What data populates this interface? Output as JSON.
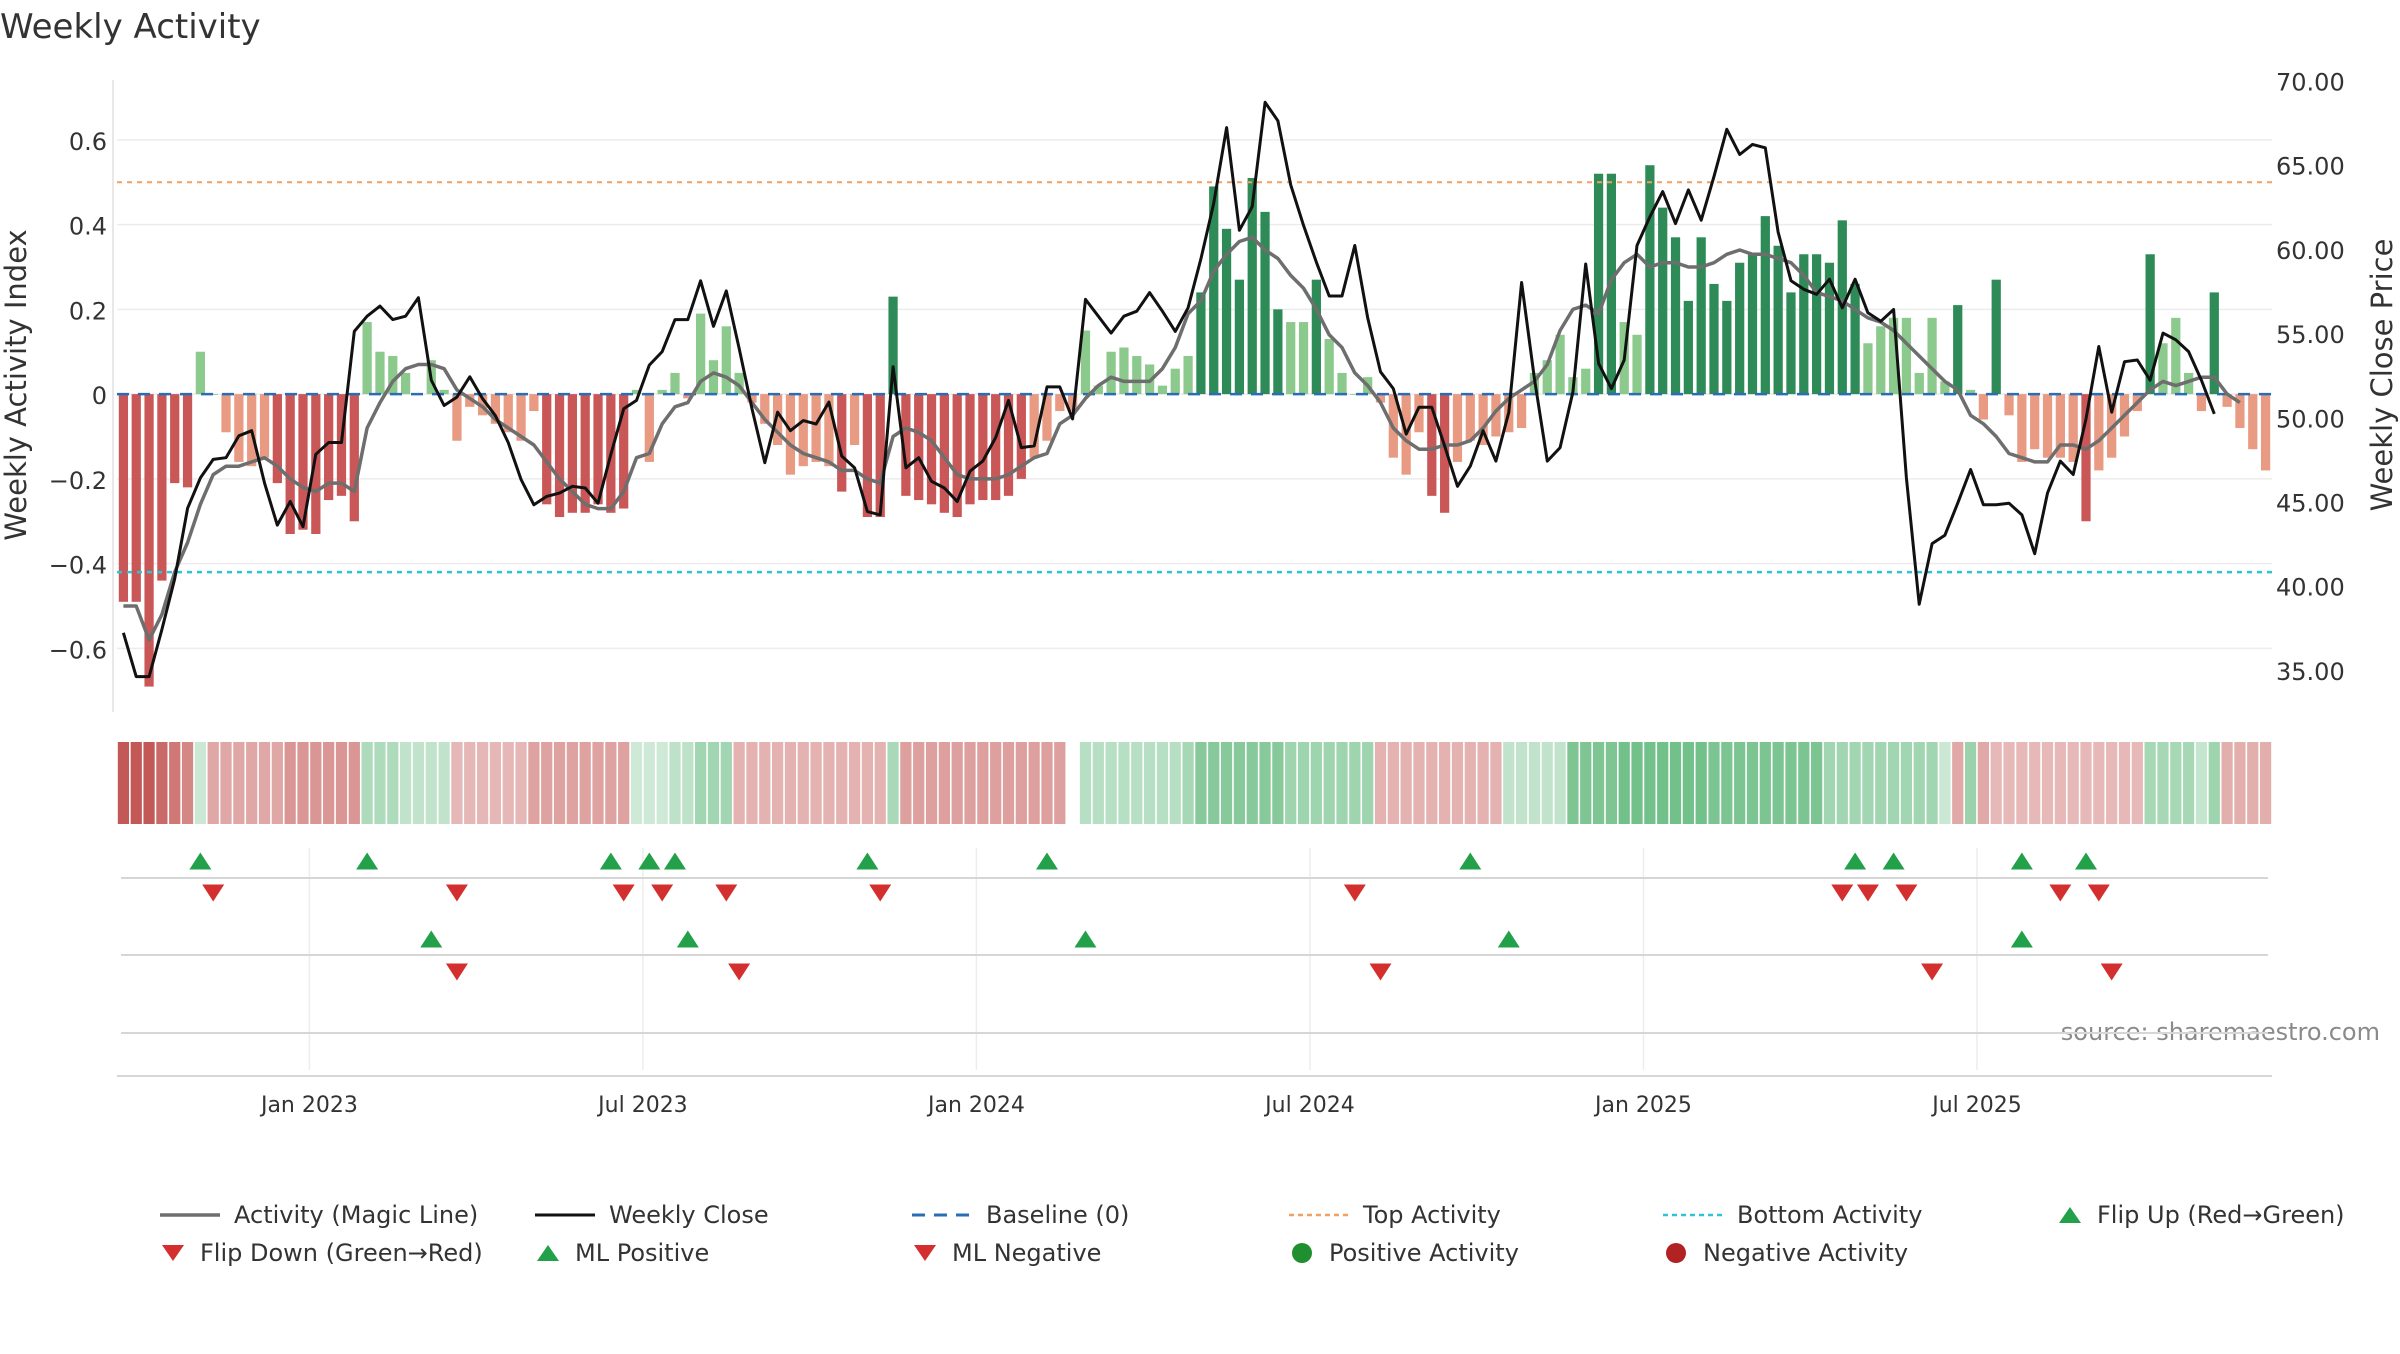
{
  "title": "Weekly Activity",
  "source_text": "source: sharemaestro.com",
  "colors": {
    "magic_line": "#6e6e6e",
    "close_line": "#111111",
    "baseline": "#2a6db5",
    "top_line": "#f0a060",
    "bottom_line": "#2ec4d6",
    "pos_strong": "#2e8b57",
    "pos_light": "#8cc98c",
    "neg_strong": "#c95757",
    "neg_light": "#e89a82",
    "marker_up": "#22a04a",
    "marker_down": "#d32f2f",
    "positive_dot": "#1f8f2f",
    "negative_dot": "#b22222"
  },
  "chart_data": {
    "type": "bar",
    "title": "Weekly Activity",
    "ylabel_left": "Weekly Activity Index",
    "ylabel_right": "Weekly Close Price",
    "ylim_left": [
      -0.75,
      0.76
    ],
    "ylim_right": [
      32.5,
      70.5
    ],
    "left_ticks": [
      "0.6",
      "0.4",
      "0.2",
      "0",
      "−0.2",
      "−0.4",
      "−0.6"
    ],
    "left_tick_values": [
      0.6,
      0.4,
      0.2,
      0,
      -0.2,
      -0.4,
      -0.6
    ],
    "right_ticks": [
      "70.00",
      "65.00",
      "60.00",
      "55.00",
      "50.00",
      "45.00",
      "40.00",
      "35.00"
    ],
    "right_tick_values": [
      70,
      65,
      60,
      55,
      50,
      45,
      40,
      35
    ],
    "x_tick_labels": [
      "Jan 2023",
      "Jul 2023",
      "Jan 2024",
      "Jul 2024",
      "Jan 2025",
      "Jul 2025"
    ],
    "x_tick_weeks": [
      15,
      41,
      67,
      93,
      119,
      145
    ],
    "top_activity": 0.5,
    "bottom_activity": -0.42,
    "start": "2022-09-26",
    "frequency": "weekly",
    "activity": [
      -0.49,
      -0.49,
      -0.69,
      -0.44,
      -0.21,
      -0.22,
      0.1,
      0,
      -0.09,
      -0.16,
      -0.17,
      -0.15,
      -0.21,
      -0.33,
      -0.32,
      -0.33,
      -0.25,
      -0.24,
      -0.3,
      0.17,
      0.1,
      0.09,
      0.05,
      0,
      0.08,
      0.01,
      -0.11,
      -0.03,
      -0.05,
      -0.07,
      -0.09,
      -0.11,
      -0.04,
      -0.26,
      -0.29,
      -0.28,
      -0.28,
      -0.26,
      -0.28,
      -0.27,
      0.01,
      -0.16,
      0.01,
      0.05,
      -0.01,
      0.19,
      0.08,
      0.16,
      0.05,
      -0.02,
      -0.07,
      -0.12,
      -0.19,
      -0.17,
      -0.16,
      -0.17,
      -0.23,
      -0.12,
      -0.29,
      -0.29,
      0.23,
      -0.24,
      -0.25,
      -0.26,
      -0.28,
      -0.29,
      -0.26,
      -0.25,
      -0.25,
      -0.24,
      -0.2,
      -0.15,
      -0.11,
      -0.04,
      -0.04,
      0.15,
      0.02,
      0.1,
      0.11,
      0.09,
      0.07,
      0.02,
      0.06,
      0.09,
      0.24,
      0.49,
      0.39,
      0.27,
      0.51,
      0.43,
      0.2,
      0.17,
      0.17,
      0.27,
      0.13,
      0.05,
      0,
      0.04,
      -0.02,
      -0.15,
      -0.19,
      -0.09,
      -0.24,
      -0.28,
      -0.16,
      -0.11,
      -0.12,
      -0.1,
      -0.09,
      -0.08,
      0.05,
      0.08,
      0.14,
      0.04,
      0.06,
      0.52,
      0.52,
      0.17,
      0.14,
      0.54,
      0.44,
      0.37,
      0.22,
      0.37,
      0.26,
      0.22,
      0.31,
      0.33,
      0.42,
      0.35,
      0.24,
      0.33,
      0.33,
      0.31,
      0.41,
      0.26,
      0.12,
      0.16,
      0.18,
      0.18,
      0.05,
      0.18,
      0.03,
      0.21,
      0.01,
      -0.06,
      0.27,
      -0.05,
      -0.16,
      -0.13,
      -0.15,
      -0.15,
      -0.16,
      -0.3,
      -0.18,
      -0.15,
      -0.1,
      -0.04,
      0.33,
      0.12,
      0.18,
      0.05,
      -0.04,
      0.24,
      -0.03,
      -0.08,
      -0.13,
      -0.18
    ],
    "magic_line": [
      -0.5,
      -0.5,
      -0.58,
      -0.52,
      -0.42,
      -0.35,
      -0.26,
      -0.19,
      -0.17,
      -0.17,
      -0.16,
      -0.15,
      -0.17,
      -0.2,
      -0.22,
      -0.23,
      -0.21,
      -0.21,
      -0.23,
      -0.08,
      -0.02,
      0.03,
      0.06,
      0.07,
      0.07,
      0.06,
      0.01,
      -0.01,
      -0.03,
      -0.06,
      -0.08,
      -0.1,
      -0.12,
      -0.16,
      -0.2,
      -0.23,
      -0.26,
      -0.27,
      -0.27,
      -0.23,
      -0.15,
      -0.14,
      -0.07,
      -0.03,
      -0.02,
      0.03,
      0.05,
      0.04,
      0.02,
      -0.02,
      -0.06,
      -0.09,
      -0.12,
      -0.14,
      -0.15,
      -0.16,
      -0.18,
      -0.18,
      -0.2,
      -0.21,
      -0.1,
      -0.08,
      -0.09,
      -0.11,
      -0.15,
      -0.19,
      -0.2,
      -0.2,
      -0.2,
      -0.19,
      -0.17,
      -0.15,
      -0.14,
      -0.07,
      -0.05,
      -0.01,
      0.02,
      0.04,
      0.03,
      0.03,
      0.03,
      0.06,
      0.11,
      0.19,
      0.22,
      0.29,
      0.33,
      0.36,
      0.37,
      0.34,
      0.32,
      0.28,
      0.25,
      0.2,
      0.14,
      0.11,
      0.05,
      0.02,
      -0.02,
      -0.08,
      -0.11,
      -0.13,
      -0.13,
      -0.12,
      -0.12,
      -0.11,
      -0.08,
      -0.04,
      -0.01,
      0.01,
      0.03,
      0.07,
      0.15,
      0.2,
      0.21,
      0.19,
      0.27,
      0.31,
      0.33,
      0.3,
      0.31,
      0.31,
      0.3,
      0.3,
      0.31,
      0.33,
      0.34,
      0.33,
      0.33,
      0.32,
      0.31,
      0.28,
      0.24,
      0.23,
      0.22,
      0.2,
      0.18,
      0.17,
      0.15,
      0.12,
      0.09,
      0.06,
      0.03,
      0.01,
      -0.05,
      -0.07,
      -0.1,
      -0.14,
      -0.15,
      -0.16,
      -0.16,
      -0.12,
      -0.12,
      -0.13,
      -0.11,
      -0.08,
      -0.05,
      -0.02,
      0.01,
      0.03,
      0.02,
      0.03,
      0.04,
      0.04,
      0,
      -0.02
    ],
    "close": [
      37.2,
      34.6,
      34.6,
      37.4,
      40.4,
      44.6,
      46.4,
      47.5,
      47.6,
      48.9,
      49.2,
      46.1,
      43.6,
      45,
      43.5,
      47.8,
      48.5,
      48.5,
      55.1,
      56,
      56.6,
      55.8,
      56,
      57.1,
      52.2,
      50.7,
      51.2,
      52.4,
      51.1,
      50.1,
      48.5,
      46.3,
      44.8,
      45.3,
      45.5,
      45.9,
      45.8,
      44.9,
      47.8,
      50.5,
      51,
      53.1,
      53.9,
      55.8,
      55.8,
      58.1,
      55.4,
      57.5,
      54.1,
      50.5,
      47.3,
      50.3,
      49.2,
      49.8,
      49.6,
      50.9,
      47.7,
      47,
      44.4,
      44.2,
      53,
      47,
      47.6,
      46.2,
      45.8,
      45,
      46.8,
      47.4,
      48.8,
      51,
      48.2,
      48.3,
      51.8,
      51.8,
      49.9,
      57,
      56,
      55,
      56,
      56.3,
      57.4,
      56.3,
      55.1,
      56.5,
      59.4,
      62.7,
      67.2,
      61.1,
      62.5,
      68.7,
      67.6,
      63.8,
      61.4,
      59.2,
      57.2,
      57.2,
      60.2,
      55.9,
      52.7,
      51.7,
      49,
      50.6,
      50.6,
      48.3,
      45.9,
      47.1,
      49.2,
      47.4,
      50.3,
      58,
      52.3,
      47.4,
      48.2,
      51.5,
      59.1,
      53.2,
      51.7,
      53.4,
      60.2,
      61.9,
      63.4,
      61.5,
      63.5,
      61.7,
      64.3,
      67.1,
      65.6,
      66.2,
      66,
      61,
      58.1,
      57.6,
      57.3,
      58.2,
      56.5,
      58.2,
      56.2,
      55.7,
      56.4,
      46.4,
      38.9,
      42.5,
      43,
      44.9,
      46.9,
      44.8,
      44.8,
      44.9,
      44.2,
      41.9,
      45.5,
      47.4,
      46.6,
      49.9,
      54.2,
      50.3,
      53.3,
      53.4,
      52.2,
      55,
      54.6,
      53.9,
      52.2,
      50.2
    ],
    "sentiment_strip": [
      -0.54,
      -0.54,
      -0.54,
      -0.47,
      -0.41,
      -0.34,
      0.05,
      -0.21,
      -0.21,
      -0.21,
      -0.21,
      -0.21,
      -0.21,
      -0.28,
      -0.28,
      -0.28,
      -0.28,
      -0.28,
      -0.28,
      0.17,
      0.17,
      0.17,
      0.1,
      0.1,
      0.1,
      0.1,
      -0.14,
      -0.14,
      -0.14,
      -0.14,
      -0.14,
      -0.14,
      -0.23,
      -0.23,
      -0.23,
      -0.23,
      -0.23,
      -0.23,
      -0.23,
      -0.23,
      0.04,
      0.04,
      0.04,
      0.11,
      0.11,
      0.22,
      0.22,
      0.22,
      -0.16,
      -0.16,
      -0.16,
      -0.16,
      -0.16,
      -0.16,
      -0.16,
      -0.16,
      -0.16,
      -0.16,
      -0.16,
      -0.16,
      0.19,
      -0.24,
      -0.24,
      -0.24,
      -0.24,
      -0.24,
      -0.24,
      -0.24,
      -0.24,
      -0.24,
      -0.24,
      -0.24,
      -0.24,
      -0.24,
      null,
      0.13,
      0.13,
      0.13,
      0.13,
      0.13,
      0.13,
      0.13,
      0.13,
      0.2,
      0.33,
      0.33,
      0.33,
      0.33,
      0.33,
      0.33,
      0.33,
      0.24,
      0.24,
      0.24,
      0.24,
      0.24,
      0.24,
      0.24,
      -0.16,
      -0.16,
      -0.16,
      -0.16,
      -0.16,
      -0.16,
      -0.16,
      -0.16,
      -0.16,
      -0.16,
      0.1,
      0.1,
      0.1,
      0.1,
      0.1,
      0.37,
      0.37,
      0.37,
      0.37,
      0.42,
      0.42,
      0.42,
      0.42,
      0.42,
      0.42,
      0.42,
      0.38,
      0.38,
      0.38,
      0.38,
      0.38,
      0.38,
      0.38,
      0.38,
      0.38,
      0.22,
      0.22,
      0.22,
      0.22,
      0.22,
      0.22,
      0.22,
      0.22,
      0.22,
      0.05,
      -0.2,
      0.25,
      -0.2,
      -0.13,
      -0.13,
      -0.13,
      -0.13,
      -0.13,
      -0.13,
      -0.13,
      -0.13,
      -0.13,
      -0.13,
      -0.13,
      -0.13,
      0.2,
      0.2,
      0.2,
      0.2,
      0.08,
      0.24,
      -0.18,
      -0.18,
      -0.18,
      -0.18
    ],
    "flip_up_weeks": [
      6,
      19,
      38,
      41,
      43,
      58,
      72,
      105,
      135,
      138,
      148,
      153
    ],
    "flip_down_weeks": [
      7,
      26,
      39,
      42,
      47,
      59,
      96,
      134,
      136,
      139,
      151,
      154
    ],
    "ml_positive_weeks": [
      24,
      44,
      75,
      108,
      148
    ],
    "ml_negative_weeks": [
      26,
      48,
      98,
      141,
      155
    ],
    "legend": [
      {
        "label": "Activity (Magic Line)",
        "kind": "line-solid-gray"
      },
      {
        "label": "Weekly Close",
        "kind": "line-solid-black"
      },
      {
        "label": "Baseline (0)",
        "kind": "line-dashed-blue"
      },
      {
        "label": "Top Activity",
        "kind": "line-dotted-orange"
      },
      {
        "label": "Bottom Activity",
        "kind": "line-dotted-cyan"
      },
      {
        "label": "Flip Up (Red→Green)",
        "kind": "triangle-up"
      },
      {
        "label": "Flip Down (Green→Red)",
        "kind": "triangle-down"
      },
      {
        "label": "ML Positive",
        "kind": "triangle-up"
      },
      {
        "label": "ML Negative",
        "kind": "triangle-down"
      },
      {
        "label": "Positive Activity",
        "kind": "dot-green"
      },
      {
        "label": "Negative Activity",
        "kind": "dot-red"
      }
    ]
  }
}
